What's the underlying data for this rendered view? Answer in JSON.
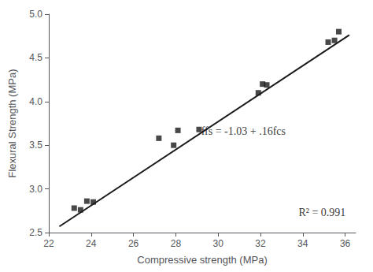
{
  "chart_data": {
    "type": "scatter",
    "xlabel": "Compressive strength (MPa)",
    "ylabel": "Flexural Strength (MPa)",
    "series": [
      {
        "type": "line",
        "color": "#1a1a1a",
        "x": [
          22.5,
          36.2
        ],
        "values": [
          2.57,
          4.762
        ]
      },
      {
        "type": "scatter",
        "color": "#1a1a1a",
        "marker": "square",
        "x": [
          23.2,
          23.5,
          23.8,
          24.1,
          27.2,
          27.9,
          28.1,
          29.1,
          31.9,
          32.1,
          32.3,
          35.2,
          35.5,
          35.7
        ],
        "values": [
          2.78,
          2.76,
          2.86,
          2.85,
          3.58,
          3.5,
          3.67,
          3.68,
          4.1,
          4.2,
          4.19,
          4.68,
          4.7,
          4.8
        ]
      }
    ],
    "annotations": [
      {
        "text": "ffs = -1.03 + .16fcs",
        "x": 29.2,
        "y": 3.6
      },
      {
        "text": "R² = 0.991",
        "x": 33.8,
        "y": 2.67
      }
    ],
    "xlim": [
      22,
      36.5
    ],
    "ylim": [
      2.5,
      5.0
    ],
    "xticks": [
      22,
      24,
      26,
      28,
      30,
      32,
      34,
      36
    ],
    "yticks": [
      2.5,
      {
        "value": 3.0,
        "label": "3.0"
      },
      3.5,
      {
        "value": 4.0,
        "label": "4.0"
      },
      4.5,
      {
        "value": 5.0,
        "label": "5.0"
      }
    ],
    "grid": false
  }
}
